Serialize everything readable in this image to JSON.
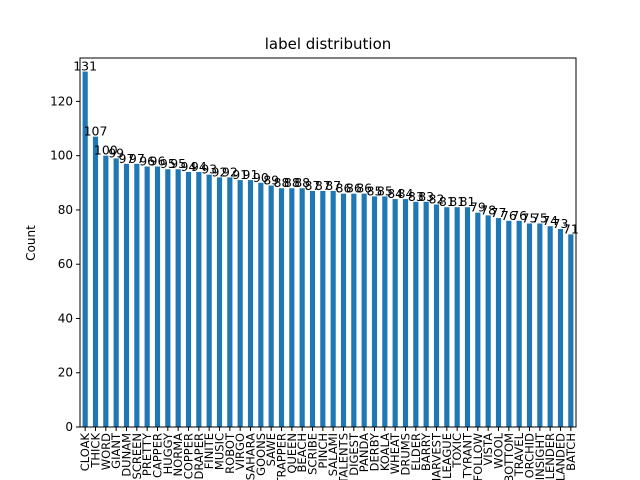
{
  "chart_data": {
    "type": "bar",
    "title": "label distribution",
    "xlabel": "",
    "ylabel": "Count",
    "ylim": [
      0,
      136
    ],
    "yticks": [
      0,
      20,
      40,
      60,
      80,
      100,
      120
    ],
    "grid": false,
    "legend": "none",
    "bar_color": "#1f77b4",
    "categories": [
      "CLOAK",
      "THICK",
      "WORD",
      "GIANT",
      "DUNAM",
      "SCREEN",
      "PRETTY",
      "CAPPER",
      "HUGGY",
      "NORMA",
      "COPPER",
      "DRAPER",
      "FINITE",
      "MUSIC",
      "ROBOT",
      "VIRGO",
      "SAHARA",
      "GOONS",
      "SAWE",
      "TRAPPER",
      "QUEEN",
      "BEACH",
      "SCRIBE",
      "PINCH",
      "SALAMI",
      "TALENTS",
      "DIGEST",
      "PANDA",
      "DERBY",
      "KOALA",
      "WHEAT",
      "DRUMS",
      "ELDER",
      "BARRY",
      "HARVEST",
      "LEAGUE",
      "TOXIC",
      "TYRANT",
      "FOLLOW",
      "VISTA",
      "WOOL",
      "BOTTOM",
      "TRAVEL",
      "ORCHID",
      "INSIGHT",
      "SLENDER",
      "LANDED",
      "BATCH"
    ],
    "values": [
      131,
      107,
      100,
      99,
      97,
      97,
      96,
      96,
      95,
      95,
      94,
      94,
      93,
      92,
      92,
      91,
      91,
      90,
      89,
      88,
      88,
      88,
      87,
      87,
      87,
      86,
      86,
      86,
      85,
      85,
      84,
      84,
      83,
      83,
      82,
      81,
      81,
      81,
      79,
      78,
      77,
      76,
      76,
      75,
      75,
      74,
      73,
      71
    ]
  }
}
